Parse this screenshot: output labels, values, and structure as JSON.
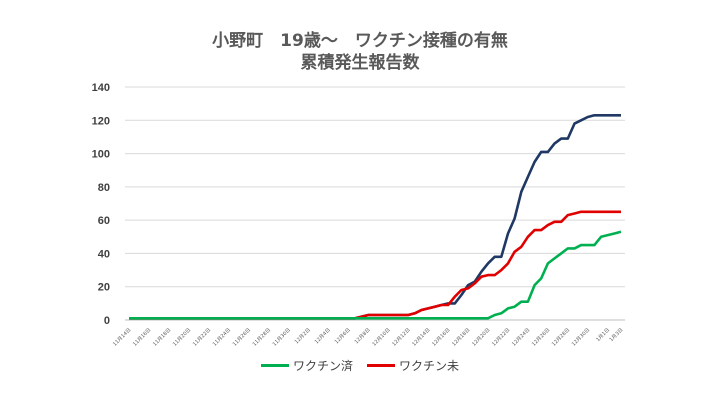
{
  "chart_data": {
    "type": "line",
    "title_line1": "小野町　19歳～　ワクチン接種の有無",
    "title_line2": "累積発生報告数",
    "ylim": [
      0,
      140
    ],
    "yticks": [
      "0",
      "20",
      "40",
      "60",
      "80",
      "100",
      "120",
      "140"
    ],
    "x_tick_labels": [
      "11月14日",
      "11月16日",
      "11月18日",
      "11月20日",
      "11月22日",
      "11月24日",
      "11月26日",
      "11月28日",
      "11月30日",
      "12月2日",
      "12月4日",
      "12月6日",
      "12月8日",
      "12月10日",
      "12月12日",
      "12月14日",
      "12月16日",
      "12月18日",
      "12月20日",
      "12月22日",
      "12月24日",
      "12月26日",
      "12月28日",
      "12月30日",
      "1月1日",
      "1月3日"
    ],
    "grid": true,
    "legend_position": "bottom",
    "series": [
      {
        "name": "ワクチン済",
        "color": "#00B050",
        "values": [
          1,
          1,
          1,
          1,
          1,
          1,
          1,
          1,
          1,
          1,
          1,
          1,
          1,
          1,
          1,
          1,
          1,
          1,
          1,
          1,
          1,
          1,
          1,
          1,
          1,
          1,
          1,
          1,
          1,
          1,
          1,
          1,
          1,
          1,
          1,
          1,
          1,
          1,
          1,
          1,
          1,
          1,
          1,
          1,
          1,
          1,
          1,
          1,
          1,
          1,
          1,
          1,
          1,
          1,
          1,
          3,
          4,
          7,
          8,
          11,
          11,
          21,
          25,
          34,
          37,
          40,
          43,
          43,
          45,
          45,
          45,
          50,
          51,
          52,
          53
        ]
      },
      {
        "name": "ワクチン未",
        "color": "#E00000",
        "values": [
          1,
          1,
          1,
          1,
          1,
          1,
          1,
          1,
          1,
          1,
          1,
          1,
          1,
          1,
          1,
          1,
          1,
          1,
          1,
          1,
          1,
          1,
          1,
          1,
          1,
          1,
          1,
          1,
          1,
          1,
          1,
          1,
          1,
          1,
          1,
          2,
          3,
          3,
          3,
          3,
          3,
          3,
          3,
          4,
          6,
          7,
          8,
          9,
          9,
          14,
          18,
          19,
          22,
          26,
          27,
          27,
          30,
          34,
          41,
          44,
          50,
          54,
          54,
          57,
          59,
          59,
          63,
          64,
          65,
          65,
          65,
          65,
          65,
          65,
          65
        ]
      },
      {
        "name": "",
        "color": "#1F3864",
        "values": [
          1,
          1,
          1,
          1,
          1,
          1,
          1,
          1,
          1,
          1,
          1,
          1,
          1,
          1,
          1,
          1,
          1,
          1,
          1,
          1,
          1,
          1,
          1,
          1,
          1,
          1,
          1,
          1,
          1,
          1,
          1,
          1,
          1,
          1,
          1,
          2,
          3,
          3,
          3,
          3,
          3,
          3,
          3,
          4,
          6,
          7,
          8,
          9,
          10,
          10,
          15,
          21,
          23,
          29,
          34,
          38,
          38,
          52,
          61,
          77,
          86,
          95,
          101,
          101,
          106,
          109,
          109,
          118,
          120,
          122,
          123,
          123,
          123,
          123,
          123
        ]
      }
    ]
  }
}
